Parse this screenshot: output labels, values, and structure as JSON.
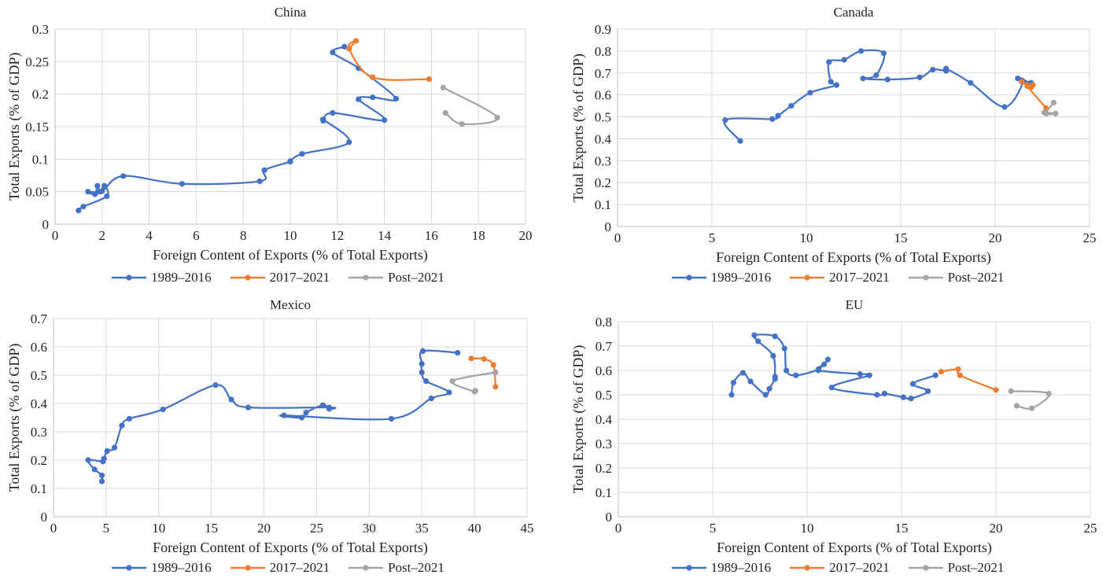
{
  "series_names": [
    "1989–2016",
    "2017–2021",
    "Post–2021"
  ],
  "colors": {
    "1989–2016": "#4472C4",
    "2017–2021": "#ED7D31",
    "Post–2021": "#A5A5A5",
    "grid": "#D9D9D9",
    "axis": "#BFBFBF"
  },
  "chart_data": [
    {
      "type": "line",
      "title": "China",
      "xlabel": "Foreign Content of Exports (% of Total Exports)",
      "ylabel": "Total Exports (% of GDP)",
      "xlim": [
        0,
        20
      ],
      "ylim": [
        0,
        0.3
      ],
      "xticks": [
        0,
        2,
        4,
        6,
        8,
        10,
        12,
        14,
        16,
        18,
        20
      ],
      "xtick_labels": [
        "0",
        "2",
        "4",
        "6",
        "8",
        "10",
        "12",
        "14",
        "16",
        "18",
        "20"
      ],
      "yticks": [
        0,
        0.05,
        0.1,
        0.15,
        0.2,
        0.25,
        0.3
      ],
      "ytick_labels": [
        "0",
        "0.05",
        "0.1",
        "0.15",
        "0.2",
        "0.25",
        "0.3"
      ],
      "grid": true,
      "legend": "bottom",
      "series": [
        {
          "name": "1989–2016",
          "points": [
            [
              1.0,
              0.021
            ],
            [
              1.2,
              0.027
            ],
            [
              2.2,
              0.043
            ],
            [
              2.1,
              0.059
            ],
            [
              1.9,
              0.05
            ],
            [
              1.8,
              0.059
            ],
            [
              1.7,
              0.046
            ],
            [
              1.4,
              0.05
            ],
            [
              2.0,
              0.051
            ],
            [
              2.9,
              0.074
            ],
            [
              5.4,
              0.062
            ],
            [
              8.7,
              0.066
            ],
            [
              8.9,
              0.083
            ],
            [
              10.0,
              0.096
            ],
            [
              10.0,
              0.097
            ],
            [
              10.5,
              0.108
            ],
            [
              12.5,
              0.126
            ],
            [
              11.4,
              0.161
            ],
            [
              11.4,
              0.159
            ],
            [
              11.8,
              0.171
            ],
            [
              14.0,
              0.16
            ],
            [
              12.9,
              0.192
            ],
            [
              13.5,
              0.195
            ],
            [
              14.5,
              0.193
            ],
            [
              12.9,
              0.24
            ],
            [
              11.8,
              0.264
            ],
            [
              12.3,
              0.273
            ]
          ]
        },
        {
          "name": "2017–2021",
          "points": [
            [
              12.5,
              0.27
            ],
            [
              12.8,
              0.282
            ],
            [
              12.5,
              0.27
            ],
            [
              13.5,
              0.226
            ],
            [
              15.9,
              0.223
            ]
          ]
        },
        {
          "name": "Post–2021",
          "points": [
            [
              16.5,
              0.21
            ],
            [
              18.8,
              0.164
            ],
            [
              17.3,
              0.154
            ],
            [
              16.6,
              0.171
            ]
          ]
        }
      ]
    },
    {
      "type": "line",
      "title": "Canada",
      "xlabel": "Foreign Content of Exports (% of Total Exports)",
      "ylabel": "Total Exports (% of GDP)",
      "xlim": [
        0,
        25
      ],
      "ylim": [
        0,
        0.9
      ],
      "xticks": [
        0,
        5,
        10,
        15,
        20,
        25
      ],
      "xtick_labels": [
        "0",
        "5",
        "10",
        "15",
        "20",
        "25"
      ],
      "yticks": [
        0,
        0.1,
        0.2,
        0.3,
        0.4,
        0.5,
        0.6,
        0.7,
        0.8,
        0.9
      ],
      "ytick_labels": [
        "0",
        "0.1",
        "0.2",
        "0.3",
        "0.4",
        "0.5",
        "0.6",
        "0.7",
        "0.8",
        "0.9"
      ],
      "grid": true,
      "legend": "bottom",
      "series": [
        {
          "name": "1989–2016",
          "points": [
            [
              6.5,
              0.39
            ],
            [
              5.7,
              0.485
            ],
            [
              8.2,
              0.49
            ],
            [
              8.5,
              0.505
            ],
            [
              9.2,
              0.55
            ],
            [
              10.2,
              0.61
            ],
            [
              11.6,
              0.645
            ],
            [
              11.3,
              0.66
            ],
            [
              11.2,
              0.75
            ],
            [
              12.0,
              0.76
            ],
            [
              12.9,
              0.8
            ],
            [
              14.1,
              0.79
            ],
            [
              13.7,
              0.69
            ],
            [
              13.0,
              0.675
            ],
            [
              14.3,
              0.67
            ],
            [
              16.0,
              0.68
            ],
            [
              16.7,
              0.715
            ],
            [
              17.4,
              0.71
            ],
            [
              17.4,
              0.72
            ],
            [
              18.7,
              0.655
            ],
            [
              20.5,
              0.545
            ],
            [
              21.5,
              0.66
            ],
            [
              21.2,
              0.675
            ],
            [
              21.9,
              0.655
            ]
          ]
        },
        {
          "name": "2017–2021",
          "points": [
            [
              21.4,
              0.66
            ],
            [
              21.7,
              0.645
            ],
            [
              22.0,
              0.645
            ],
            [
              21.9,
              0.635
            ],
            [
              21.7,
              0.64
            ],
            [
              22.7,
              0.54
            ]
          ]
        },
        {
          "name": "Post–2021",
          "points": [
            [
              23.1,
              0.565
            ],
            [
              22.7,
              0.515
            ],
            [
              23.2,
              0.515
            ],
            [
              22.6,
              0.52
            ]
          ]
        }
      ]
    },
    {
      "type": "line",
      "title": "Mexico",
      "xlabel": "Foreign Content of Exports (% of Total Exports)",
      "ylabel": "Total Exports (% of GDP)",
      "xlim": [
        0,
        45
      ],
      "ylim": [
        0,
        0.7
      ],
      "xticks": [
        0,
        5,
        10,
        15,
        20,
        25,
        30,
        35,
        40,
        45
      ],
      "xtick_labels": [
        "0",
        "5",
        "10",
        "15",
        "20",
        "25",
        "30",
        "35",
        "40",
        "45"
      ],
      "yticks": [
        0,
        0.1,
        0.2,
        0.3,
        0.4,
        0.5,
        0.6,
        0.7
      ],
      "ytick_labels": [
        "0",
        "0.1",
        "0.2",
        "0.3",
        "0.4",
        "0.5",
        "0.6",
        "0.7"
      ],
      "grid": true,
      "legend": "bottom",
      "series": [
        {
          "name": "1989–2016",
          "points": [
            [
              4.6,
              0.125
            ],
            [
              4.6,
              0.146
            ],
            [
              3.9,
              0.167
            ],
            [
              3.3,
              0.2
            ],
            [
              4.7,
              0.195
            ],
            [
              4.8,
              0.205
            ],
            [
              5.1,
              0.232
            ],
            [
              5.8,
              0.244
            ],
            [
              6.5,
              0.322
            ],
            [
              7.2,
              0.346
            ],
            [
              10.4,
              0.379
            ],
            [
              15.4,
              0.465
            ],
            [
              16.9,
              0.414
            ],
            [
              18.5,
              0.386
            ],
            [
              26.2,
              0.386
            ],
            [
              26.2,
              0.381
            ],
            [
              25.6,
              0.394
            ],
            [
              24.0,
              0.368
            ],
            [
              23.6,
              0.35
            ],
            [
              21.9,
              0.358
            ],
            [
              32.1,
              0.346
            ],
            [
              35.9,
              0.418
            ],
            [
              37.6,
              0.439
            ],
            [
              35.4,
              0.479
            ],
            [
              35.0,
              0.51
            ],
            [
              35.0,
              0.54
            ],
            [
              35.1,
              0.585
            ],
            [
              38.4,
              0.579
            ]
          ]
        },
        {
          "name": "2017–2021",
          "points": [
            [
              39.7,
              0.559
            ],
            [
              40.9,
              0.557
            ],
            [
              41.8,
              0.536
            ],
            [
              42.0,
              0.459
            ]
          ]
        },
        {
          "name": "Post–2021",
          "points": [
            [
              42.0,
              0.51
            ],
            [
              37.9,
              0.479
            ],
            [
              40.0,
              0.442
            ],
            [
              40.1,
              0.445
            ]
          ]
        }
      ]
    },
    {
      "type": "line",
      "title": "EU",
      "xlabel": "Foreign Content of Exports (% of Total Exports)",
      "ylabel": "Total Exports (% of GDP)",
      "xlim": [
        0,
        25
      ],
      "ylim": [
        0,
        0.8
      ],
      "xticks": [
        0,
        5,
        10,
        15,
        20,
        25
      ],
      "xtick_labels": [
        "0",
        "5",
        "10",
        "15",
        "20",
        "25"
      ],
      "yticks": [
        0,
        0.1,
        0.2,
        0.3,
        0.4,
        0.5,
        0.6,
        0.7,
        0.8
      ],
      "ytick_labels": [
        "0",
        "0.1",
        "0.2",
        "0.3",
        "0.4",
        "0.5",
        "0.6",
        "0.7",
        "0.8"
      ],
      "grid": true,
      "legend": "bottom",
      "series": [
        {
          "name": "1989–2016",
          "points": [
            [
              6.0,
              0.5
            ],
            [
              6.1,
              0.55
            ],
            [
              6.6,
              0.59
            ],
            [
              7.0,
              0.555
            ],
            [
              7.8,
              0.5
            ],
            [
              8.0,
              0.525
            ],
            [
              8.3,
              0.565
            ],
            [
              8.3,
              0.575
            ],
            [
              8.2,
              0.66
            ],
            [
              7.4,
              0.72
            ],
            [
              7.2,
              0.745
            ],
            [
              8.3,
              0.74
            ],
            [
              8.8,
              0.69
            ],
            [
              8.9,
              0.6
            ],
            [
              9.4,
              0.58
            ],
            [
              10.6,
              0.605
            ],
            [
              11.1,
              0.645
            ],
            [
              10.9,
              0.625
            ],
            [
              10.6,
              0.6
            ],
            [
              12.8,
              0.585
            ],
            [
              13.3,
              0.58
            ],
            [
              11.3,
              0.53
            ],
            [
              13.7,
              0.5
            ],
            [
              14.1,
              0.505
            ],
            [
              15.1,
              0.49
            ],
            [
              15.5,
              0.485
            ],
            [
              16.4,
              0.515
            ],
            [
              15.6,
              0.545
            ],
            [
              16.8,
              0.58
            ]
          ]
        },
        {
          "name": "2017–2021",
          "points": [
            [
              17.1,
              0.595
            ],
            [
              18.0,
              0.605
            ],
            [
              18.1,
              0.58
            ],
            [
              20.0,
              0.52
            ]
          ]
        },
        {
          "name": "Post–2021",
          "points": [
            [
              20.8,
              0.515
            ],
            [
              22.8,
              0.505
            ],
            [
              21.9,
              0.445
            ],
            [
              21.1,
              0.455
            ]
          ]
        }
      ]
    }
  ]
}
